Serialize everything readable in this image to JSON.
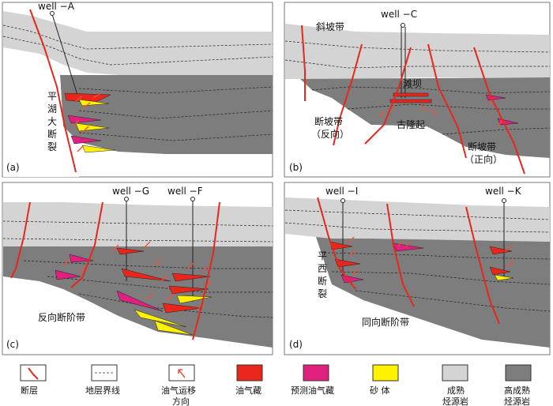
{
  "colors": {
    "fault": "#e8261c",
    "oil": "#e8261c",
    "predicted": "#e0207f",
    "sand": "#fff200",
    "mature": "#d4d4d4",
    "high_mature": "#7d7d7d",
    "arrow": "#f0503c"
  },
  "panels": [
    {
      "id": "a",
      "tag": "(a)",
      "wells": [
        "well −A"
      ],
      "labels": [
        "平",
        "湖",
        "大",
        "断",
        "裂"
      ]
    },
    {
      "id": "b",
      "tag": "(b)",
      "wells": [
        "well −C"
      ],
      "labels": [
        "斜坡带",
        "滩坝",
        "古隆起",
        "断坡带",
        "（反向）",
        "断坡带",
        "（正向）"
      ]
    },
    {
      "id": "c",
      "tag": "(c)",
      "wells": [
        "well −G",
        "well −F"
      ],
      "labels": [
        "反向断阶带"
      ]
    },
    {
      "id": "d",
      "tag": "(d)",
      "wells": [
        "well −I",
        "well −K"
      ],
      "labels": [
        "平",
        "西",
        "断",
        "裂",
        "同向断阶带"
      ]
    }
  ],
  "legend": [
    {
      "key": "fault",
      "label": [
        "断层"
      ]
    },
    {
      "key": "horizon",
      "label": [
        "地层界线"
      ]
    },
    {
      "key": "migration",
      "label": [
        "油气运移",
        "方向"
      ]
    },
    {
      "key": "oil",
      "label": [
        "油气藏"
      ]
    },
    {
      "key": "predicted",
      "label": [
        "预测油气藏"
      ]
    },
    {
      "key": "sand",
      "label": [
        "砂  体"
      ]
    },
    {
      "key": "mature",
      "label": [
        "成熟",
        "烃源岩"
      ]
    },
    {
      "key": "high_mature",
      "label": [
        "高成熟",
        "烃源岩"
      ]
    }
  ]
}
